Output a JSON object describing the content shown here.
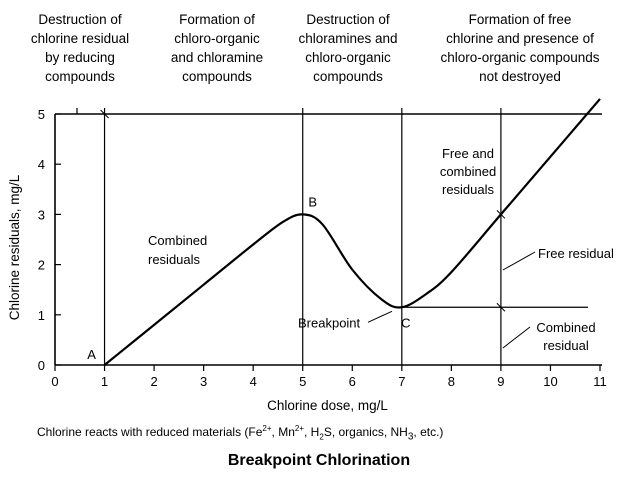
{
  "chart_data": {
    "type": "line",
    "xlabel": "Chlorine dose, mg/L",
    "ylabel": "Chlorine residuals, mg/L",
    "xlim": [
      0,
      11
    ],
    "ylim": [
      0,
      5
    ],
    "x_ticks": [
      "0",
      "1",
      "2",
      "3",
      "4",
      "5",
      "6",
      "7",
      "8",
      "9",
      "10",
      "11"
    ],
    "y_ticks": [
      "0",
      "1",
      "2",
      "3",
      "4",
      "5"
    ],
    "grid": false,
    "legend": "none",
    "series": [
      {
        "x": [
          1,
          2,
          3,
          4,
          4.6,
          5,
          5.4,
          6,
          6.6,
          7,
          7.5,
          8,
          9,
          10,
          11
        ],
        "y": [
          0,
          0.8,
          1.6,
          2.4,
          2.85,
          3.0,
          2.8,
          1.9,
          1.3,
          1.15,
          1.42,
          1.85,
          3.0,
          4.15,
          5.3
        ]
      }
    ],
    "reference_levels": [
      {
        "label": "breakpoint-residual",
        "x_start": 7,
        "x_end": 11,
        "y": 1.15
      }
    ],
    "vertical_lines_at": [
      1,
      5,
      7,
      9
    ],
    "points": [
      {
        "label": "A",
        "x": 1,
        "y": 0
      },
      {
        "label": "B",
        "x": 5,
        "y": 3.0
      },
      {
        "label": "C",
        "x": 7,
        "y": 1.15
      }
    ],
    "zone_headers": [
      "Destruction of chlorine residual by reducing compounds",
      "Formation of chloro-organic and chloramine compounds",
      "Destruction of chloramines and chloro-organic compounds",
      "Formation of free chlorine and presence of chloro-organic compounds not destroyed"
    ],
    "annotations": {
      "combined_residuals": "Combined residuals",
      "free_and_combined": "Free and combined residuals",
      "breakpoint": "Breakpoint",
      "free_residual": "Free residual",
      "combined_residual": "Combined residual"
    }
  },
  "caption": {
    "text_before": "Chlorine reacts with reduced materials (Fe",
    "sup1": "2+",
    "text_mid1": ", Mn",
    "sup2": "2+",
    "text_mid2": ", H",
    "sub1": "2",
    "text_mid3": "S, organics, NH",
    "sub2": "3",
    "text_after": ", etc.)"
  },
  "footer": {
    "title": "Breakpoint Chlorination"
  },
  "colors": {
    "line": "#000000",
    "background": "#ffffff"
  }
}
